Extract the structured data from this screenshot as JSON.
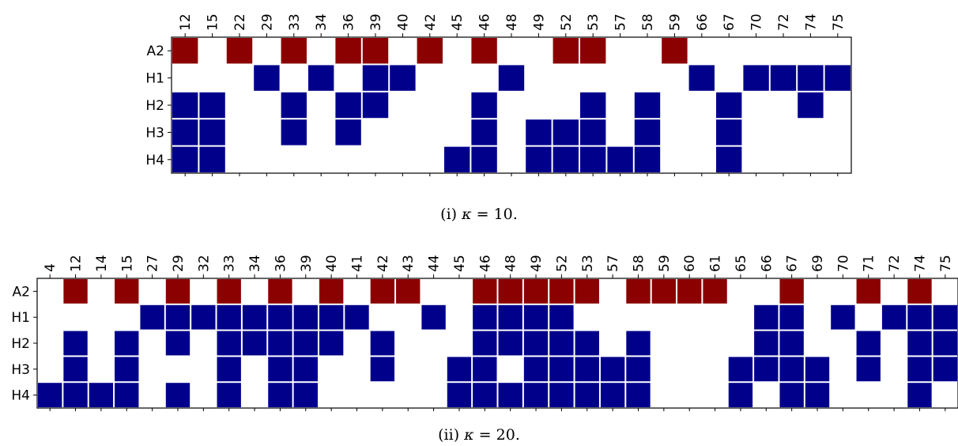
{
  "colors": {
    "A2": "#8b0000",
    "H": "#00008b",
    "empty": "#ffffff",
    "frame": "#000000"
  },
  "chart_data": [
    {
      "type": "heatmap",
      "caption_prefix": "(i)",
      "caption_symbol": "κ",
      "caption_rest": " = 10.",
      "rows": [
        "A2",
        "H1",
        "H2",
        "H3",
        "H4"
      ],
      "columns": [
        "12",
        "15",
        "22",
        "29",
        "33",
        "34",
        "36",
        "39",
        "40",
        "42",
        "45",
        "46",
        "48",
        "49",
        "52",
        "53",
        "57",
        "58",
        "59",
        "66",
        "67",
        "70",
        "72",
        "74",
        "75"
      ],
      "cells": {
        "A2": [
          "12",
          "22",
          "33",
          "36",
          "39",
          "42",
          "46",
          "52",
          "53",
          "59"
        ],
        "H1": [
          "29",
          "34",
          "39",
          "40",
          "48",
          "66",
          "70",
          "72",
          "74",
          "75"
        ],
        "H2": [
          "12",
          "15",
          "33",
          "36",
          "39",
          "46",
          "53",
          "58",
          "67",
          "74"
        ],
        "H3": [
          "12",
          "15",
          "33",
          "36",
          "46",
          "49",
          "52",
          "53",
          "58",
          "67"
        ],
        "H4": [
          "12",
          "15",
          "45",
          "46",
          "49",
          "52",
          "53",
          "57",
          "58",
          "67"
        ]
      }
    },
    {
      "type": "heatmap",
      "caption_prefix": "(ii)",
      "caption_symbol": "κ",
      "caption_rest": " = 20.",
      "rows": [
        "A2",
        "H1",
        "H2",
        "H3",
        "H4"
      ],
      "columns": [
        "4",
        "12",
        "14",
        "15",
        "27",
        "29",
        "32",
        "33",
        "34",
        "36",
        "39",
        "40",
        "41",
        "42",
        "43",
        "44",
        "45",
        "46",
        "48",
        "49",
        "52",
        "53",
        "57",
        "58",
        "59",
        "60",
        "61",
        "65",
        "66",
        "67",
        "69",
        "70",
        "71",
        "72",
        "74",
        "75"
      ],
      "cells": {
        "A2": [
          "12",
          "15",
          "29",
          "33",
          "36",
          "40",
          "42",
          "43",
          "46",
          "48",
          "49",
          "52",
          "53",
          "58",
          "59",
          "60",
          "61",
          "67",
          "71",
          "74"
        ],
        "H1": [
          "27",
          "29",
          "32",
          "33",
          "34",
          "36",
          "39",
          "40",
          "41",
          "44",
          "46",
          "48",
          "49",
          "52",
          "66",
          "67",
          "70",
          "72",
          "74",
          "75"
        ],
        "H2": [
          "12",
          "15",
          "29",
          "33",
          "34",
          "36",
          "39",
          "40",
          "42",
          "46",
          "48",
          "49",
          "52",
          "53",
          "58",
          "66",
          "67",
          "71",
          "74",
          "75"
        ],
        "H3": [
          "12",
          "15",
          "33",
          "36",
          "39",
          "42",
          "45",
          "46",
          "49",
          "52",
          "53",
          "57",
          "58",
          "65",
          "66",
          "67",
          "69",
          "71",
          "74",
          "75"
        ],
        "H4": [
          "4",
          "12",
          "14",
          "15",
          "29",
          "33",
          "36",
          "39",
          "45",
          "46",
          "48",
          "49",
          "52",
          "53",
          "57",
          "58",
          "65",
          "67",
          "69",
          "74"
        ]
      }
    }
  ]
}
